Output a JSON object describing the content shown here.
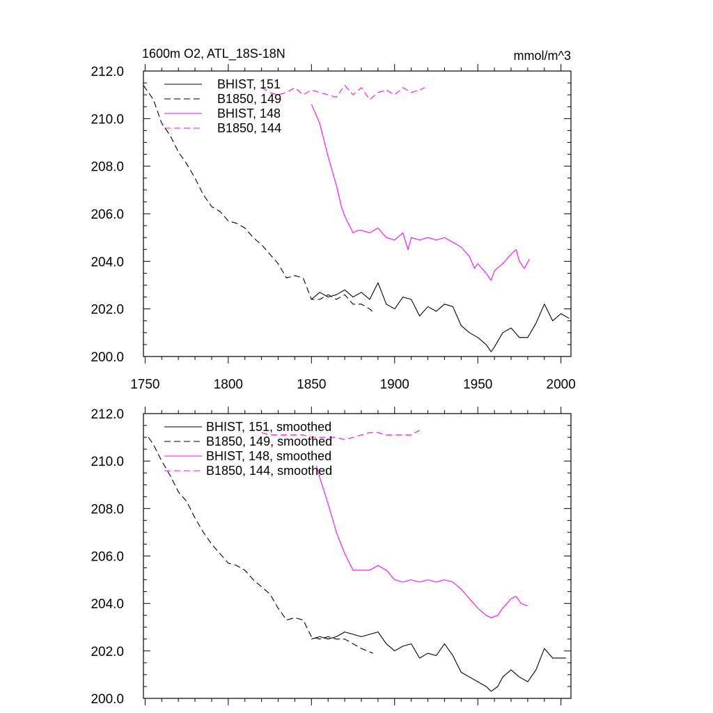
{
  "header": {
    "title": "1600m O2, ATL_18S-18N",
    "units": "mmol/m^3"
  },
  "colors": {
    "black": "#000000",
    "magenta": "#ff00ff"
  },
  "chart_data": [
    {
      "type": "line",
      "title": "1600m O2, ATL_18S-18N",
      "units": "mmol/m^3",
      "xlim": [
        1749,
        2006
      ],
      "ylim": [
        200.0,
        212.0
      ],
      "xticks": [
        "1750",
        "1800",
        "1850",
        "1900",
        "1950",
        "2000"
      ],
      "yticks": [
        "200.0",
        "202.0",
        "204.0",
        "206.0",
        "208.0",
        "210.0",
        "212.0"
      ],
      "legend": "top-left",
      "series": [
        {
          "name": "BHIST, 151",
          "color": "#000000",
          "dash": "solid",
          "x": [
            1850,
            1855,
            1860,
            1865,
            1870,
            1875,
            1880,
            1885,
            1890,
            1895,
            1900,
            1905,
            1910,
            1915,
            1920,
            1925,
            1930,
            1935,
            1940,
            1945,
            1950,
            1955,
            1958,
            1960,
            1965,
            1970,
            1975,
            1980,
            1985,
            1990,
            1995,
            2000,
            2005
          ],
          "y": [
            202.4,
            202.7,
            202.5,
            202.6,
            202.8,
            202.5,
            202.7,
            202.4,
            203.1,
            202.2,
            202.0,
            202.5,
            202.4,
            201.7,
            202.1,
            201.9,
            202.2,
            202.1,
            201.3,
            201.0,
            200.8,
            200.5,
            200.2,
            200.4,
            201.0,
            201.2,
            200.8,
            200.8,
            201.4,
            202.2,
            201.5,
            201.8,
            201.6
          ]
        },
        {
          "name": "B1850, 149",
          "color": "#000000",
          "dash": "dashed",
          "x": [
            1749,
            1755,
            1760,
            1765,
            1770,
            1775,
            1780,
            1785,
            1790,
            1795,
            1800,
            1805,
            1810,
            1815,
            1820,
            1825,
            1830,
            1835,
            1840,
            1845,
            1850,
            1855,
            1860,
            1865,
            1870,
            1875,
            1880,
            1885,
            1888
          ],
          "y": [
            211.4,
            210.8,
            209.8,
            209.3,
            208.6,
            208.1,
            207.5,
            206.8,
            206.3,
            206.1,
            205.7,
            205.6,
            205.4,
            205.0,
            204.7,
            204.3,
            203.9,
            203.3,
            203.4,
            203.3,
            202.4,
            202.4,
            202.6,
            202.4,
            202.6,
            202.2,
            202.2,
            202.0,
            201.8
          ]
        },
        {
          "name": "BHIST, 148",
          "color": "#ff00ff",
          "dash": "solid",
          "x": [
            1850,
            1855,
            1860,
            1865,
            1868,
            1870,
            1875,
            1878,
            1880,
            1885,
            1890,
            1895,
            1900,
            1905,
            1908,
            1910,
            1915,
            1920,
            1925,
            1930,
            1935,
            1940,
            1945,
            1948,
            1950,
            1955,
            1958,
            1960,
            1965,
            1970,
            1973,
            1975,
            1978,
            1981
          ],
          "y": [
            210.6,
            209.8,
            208.4,
            207.2,
            206.3,
            205.9,
            205.2,
            205.3,
            205.3,
            205.2,
            205.4,
            205.0,
            204.9,
            205.2,
            204.5,
            205.0,
            204.9,
            205.0,
            204.9,
            205.0,
            204.8,
            204.6,
            204.2,
            203.7,
            203.9,
            203.5,
            203.2,
            203.6,
            203.9,
            204.3,
            204.5,
            204.0,
            203.7,
            204.1
          ]
        },
        {
          "name": "B1850, 144",
          "color": "#ff00ff",
          "dash": "dashed",
          "x": [
            1820,
            1825,
            1830,
            1835,
            1840,
            1845,
            1850,
            1855,
            1860,
            1865,
            1870,
            1875,
            1880,
            1885,
            1890,
            1895,
            1900,
            1905,
            1910,
            1915,
            1918
          ],
          "y": [
            211.3,
            211.1,
            211.0,
            211.1,
            211.3,
            211.0,
            211.2,
            211.1,
            211.0,
            210.9,
            211.4,
            211.0,
            211.3,
            210.8,
            211.1,
            211.2,
            211.0,
            211.3,
            211.1,
            211.2,
            211.3
          ]
        }
      ]
    },
    {
      "type": "line",
      "xlim": [
        1749,
        2006
      ],
      "ylim": [
        200.0,
        212.0
      ],
      "xticks": [],
      "yticks": [
        "200.0",
        "202.0",
        "204.0",
        "206.0",
        "208.0",
        "210.0",
        "212.0"
      ],
      "legend": "top-left",
      "series": [
        {
          "name": "BHIST, 151, smoothed",
          "color": "#000000",
          "dash": "solid",
          "x": [
            1850,
            1855,
            1860,
            1865,
            1870,
            1875,
            1880,
            1885,
            1890,
            1895,
            1900,
            1905,
            1910,
            1915,
            1920,
            1925,
            1930,
            1935,
            1940,
            1945,
            1950,
            1955,
            1958,
            1962,
            1965,
            1970,
            1975,
            1980,
            1985,
            1990,
            1995,
            2000,
            2003
          ],
          "y": [
            202.5,
            202.6,
            202.5,
            202.6,
            202.8,
            202.7,
            202.6,
            202.7,
            202.8,
            202.3,
            202.0,
            202.2,
            202.3,
            201.7,
            201.9,
            201.8,
            202.3,
            201.8,
            201.1,
            200.9,
            200.7,
            200.5,
            200.3,
            200.5,
            200.9,
            201.2,
            200.9,
            200.7,
            201.2,
            202.1,
            201.7,
            201.7,
            201.7
          ]
        },
        {
          "name": "B1850, 149, smoothed",
          "color": "#000000",
          "dash": "dashed",
          "x": [
            1752,
            1755,
            1760,
            1765,
            1770,
            1775,
            1780,
            1785,
            1790,
            1795,
            1800,
            1805,
            1810,
            1815,
            1820,
            1825,
            1830,
            1835,
            1840,
            1845,
            1850,
            1855,
            1860,
            1865,
            1870,
            1875,
            1880,
            1887
          ],
          "y": [
            211.0,
            210.7,
            210.0,
            209.4,
            208.7,
            208.3,
            207.6,
            207.0,
            206.5,
            206.1,
            205.7,
            205.6,
            205.4,
            205.0,
            204.7,
            204.4,
            203.8,
            203.3,
            203.4,
            203.3,
            202.6,
            202.5,
            202.6,
            202.5,
            202.5,
            202.3,
            202.1,
            201.9
          ]
        },
        {
          "name": "BHIST, 148, smoothed",
          "color": "#ff00ff",
          "dash": "solid",
          "x": [
            1853,
            1855,
            1860,
            1865,
            1870,
            1875,
            1880,
            1885,
            1890,
            1895,
            1900,
            1905,
            1910,
            1915,
            1920,
            1925,
            1930,
            1935,
            1940,
            1945,
            1950,
            1955,
            1958,
            1962,
            1965,
            1970,
            1973,
            1976,
            1980
          ],
          "y": [
            209.8,
            209.3,
            208.2,
            207.0,
            206.1,
            205.4,
            205.4,
            205.4,
            205.6,
            205.4,
            205.0,
            204.9,
            205.0,
            204.9,
            205.0,
            204.9,
            205.0,
            204.9,
            204.6,
            204.2,
            203.8,
            203.5,
            203.4,
            203.5,
            203.8,
            204.2,
            204.3,
            204.0,
            203.9
          ]
        },
        {
          "name": "B1850, 144, smoothed",
          "color": "#ff00ff",
          "dash": "dashed",
          "x": [
            1820,
            1825,
            1830,
            1835,
            1840,
            1845,
            1850,
            1855,
            1860,
            1865,
            1870,
            1875,
            1880,
            1885,
            1890,
            1895,
            1900,
            1905,
            1910,
            1915
          ],
          "y": [
            211.2,
            211.1,
            211.1,
            211.1,
            211.1,
            211.1,
            211.0,
            211.0,
            211.0,
            211.0,
            210.9,
            211.0,
            211.1,
            211.2,
            211.2,
            211.1,
            211.1,
            211.1,
            211.1,
            211.3
          ]
        }
      ]
    }
  ]
}
